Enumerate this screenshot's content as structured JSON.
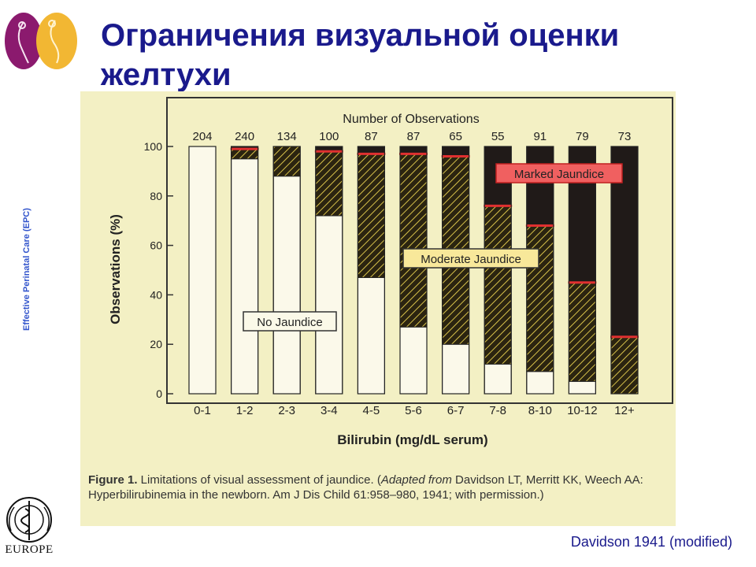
{
  "title": "Ограничения визуальной оценки желтухи",
  "side_label": "Effective Perinatal Care (EPC)",
  "credit": "Davidson 1941 (modified)",
  "who_logo": {
    "text": "EUROPE"
  },
  "caption": {
    "lead": "Figure 1.",
    "text": " Limitations of visual assessment of jaundice. (",
    "italic": "Adapted from",
    "rest": " Davidson LT, Merritt KK, Weech AA: Hyperbilirubinemia in the newborn. Am J Dis Child 61:958–980, 1941; with permission.)"
  },
  "colors": {
    "title": "#1a1a8c",
    "moderate": "#2b2410",
    "moderate_hatch": "#d7c14a",
    "marked": "#201a18",
    "red": "#e03030",
    "background": "#f3f0c4"
  },
  "chart_data": {
    "type": "bar",
    "stacked": true,
    "top_label": "Number of Observations",
    "xlabel": "Bilirubin (mg/dL serum)",
    "ylabel": "Observations (%)",
    "ylim": [
      0,
      100
    ],
    "yticks": [
      0,
      20,
      40,
      60,
      80,
      100
    ],
    "categories": [
      "0-1",
      "1-2",
      "2-3",
      "3-4",
      "4-5",
      "5-6",
      "6-7",
      "7-8",
      "8-10",
      "10-12",
      "12+"
    ],
    "observations": [
      "204",
      "240",
      "134",
      "100",
      "87",
      "87",
      "65",
      "55",
      "91",
      "79",
      "73"
    ],
    "series": [
      {
        "name": "No Jaundice",
        "values": [
          100,
          95,
          88,
          72,
          47,
          27,
          20,
          12,
          9,
          5,
          0
        ]
      },
      {
        "name": "Moderate Jaundice",
        "values": [
          0,
          4,
          12,
          26,
          50,
          70,
          76,
          64,
          59,
          40,
          23
        ]
      },
      {
        "name": "Marked Jaundice",
        "values": [
          0,
          1,
          0,
          2,
          3,
          3,
          4,
          24,
          32,
          55,
          77
        ]
      }
    ]
  }
}
